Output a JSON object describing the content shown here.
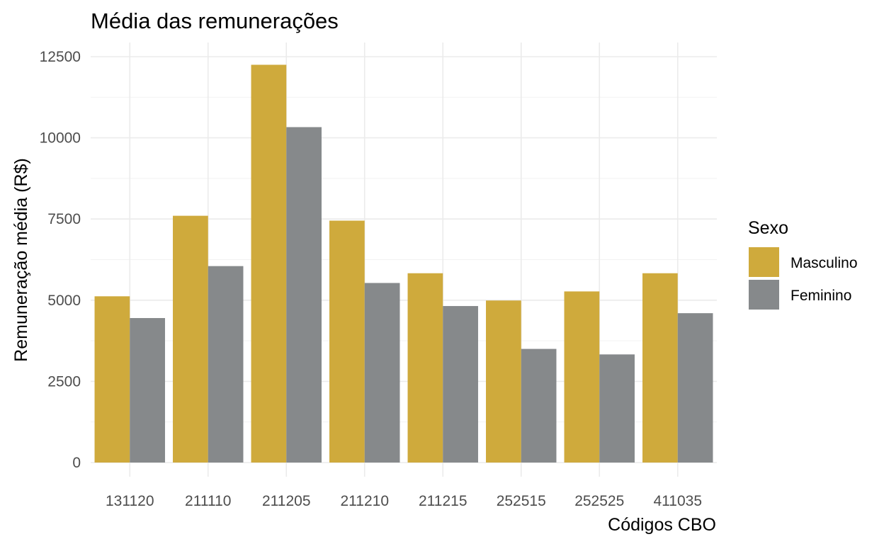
{
  "chart_data": {
    "type": "bar",
    "title": "Média das remunerações",
    "xlabel": "Códigos CBO",
    "ylabel": "Remuneração média (R$)",
    "categories": [
      "131120",
      "211110",
      "211205",
      "211210",
      "211215",
      "252515",
      "252525",
      "411035"
    ],
    "series": [
      {
        "name": "Masculino",
        "color": "#cfaa3c",
        "values": [
          5120,
          7600,
          12250,
          7450,
          5830,
          4990,
          5270,
          5830
        ]
      },
      {
        "name": "Feminino",
        "color": "#86898b",
        "values": [
          4450,
          6050,
          10330,
          5530,
          4820,
          3500,
          3330,
          4600
        ]
      }
    ],
    "ylim": [
      0,
      12500
    ],
    "yticks": [
      0,
      2500,
      5000,
      7500,
      10000,
      12500
    ],
    "grid": true,
    "legend": {
      "title": "Sexo",
      "position": "right"
    }
  }
}
